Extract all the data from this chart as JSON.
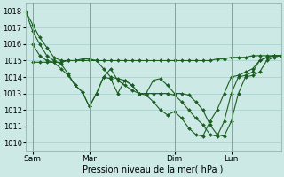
{
  "xlabel": "Pression niveau de la mer( hPa )",
  "ylim": [
    1009.5,
    1018.5
  ],
  "yticks": [
    1010,
    1011,
    1012,
    1013,
    1014,
    1015,
    1016,
    1017,
    1018
  ],
  "bg_color": "#cce9e5",
  "grid_color": "#aad4cf",
  "line_color": "#1a5e20",
  "marker_color": "#1a5e20",
  "x_tick_labels": [
    "Sam",
    "Mar",
    "Dim",
    "Lun"
  ],
  "x_tick_positions": [
    0.5,
    4.5,
    10.5,
    14.5
  ],
  "vline_positions": [
    0.5,
    4.5,
    10.5,
    14.5
  ],
  "series": [
    {
      "x": [
        0,
        0.5,
        1,
        1.5,
        2,
        2.5,
        3,
        3.5,
        4,
        4.5,
        5,
        5.5,
        6,
        6.5,
        7,
        7.5,
        8,
        8.5,
        9,
        9.5,
        10,
        10.5,
        11,
        11.5,
        12,
        12.5,
        13,
        13.5,
        14,
        14.5,
        15,
        15.5,
        16,
        16.5,
        17,
        17.5,
        18
      ],
      "y": [
        1018.0,
        1017.2,
        1016.4,
        1015.8,
        1015.2,
        1015.0,
        1015.0,
        1015.0,
        1015.0,
        1015.0,
        1015.0,
        1015.0,
        1015.0,
        1015.0,
        1015.0,
        1015.0,
        1015.0,
        1015.0,
        1015.0,
        1015.0,
        1015.0,
        1015.0,
        1015.0,
        1015.0,
        1015.0,
        1015.0,
        1015.0,
        1015.1,
        1015.1,
        1015.2,
        1015.2,
        1015.2,
        1015.3,
        1015.3,
        1015.3,
        1015.3,
        1015.3
      ]
    },
    {
      "x": [
        0,
        0.5,
        1,
        1.5,
        2,
        2.5,
        3,
        3.5,
        4,
        4.5,
        5,
        5.5,
        6,
        6.5,
        7,
        7.5,
        8,
        8.5,
        9,
        9.5,
        10,
        10.5,
        11,
        11.5,
        12,
        12.5,
        13,
        13.5,
        14,
        14.5,
        15,
        15.5,
        16,
        16.5,
        17,
        17.5,
        18
      ],
      "y": [
        1018.0,
        1016.8,
        1016.0,
        1015.3,
        1015.0,
        1014.8,
        1014.2,
        1013.5,
        1013.1,
        1012.2,
        1013.0,
        1014.0,
        1014.5,
        1013.8,
        1013.5,
        1013.2,
        1013.0,
        1013.0,
        1013.8,
        1013.9,
        1013.5,
        1013.0,
        1013.0,
        1012.9,
        1012.5,
        1012.0,
        1011.1,
        1010.5,
        1010.4,
        1011.3,
        1013.0,
        1014.0,
        1014.1,
        1014.3,
        1015.0,
        1015.2,
        1015.3
      ]
    },
    {
      "x": [
        0.5,
        1,
        1.5,
        2,
        2.5,
        3,
        3.5,
        4,
        4.5,
        5,
        5.5,
        6,
        6.5,
        7,
        7.5,
        8,
        8.5,
        9,
        9.5,
        10,
        10.5,
        11,
        11.5,
        12,
        12.5,
        13,
        13.5,
        14,
        14.5,
        15,
        15.5,
        16,
        16.5,
        17,
        17.5,
        18
      ],
      "y": [
        1016.0,
        1015.3,
        1015.0,
        1014.9,
        1014.5,
        1014.1,
        1013.5,
        1013.1,
        1012.2,
        1013.0,
        1014.0,
        1013.9,
        1013.0,
        1013.8,
        1013.5,
        1013.0,
        1013.0,
        1013.0,
        1013.0,
        1013.0,
        1012.9,
        1012.5,
        1012.0,
        1011.5,
        1011.1,
        1010.5,
        1010.4,
        1011.3,
        1013.0,
        1014.0,
        1014.1,
        1014.3,
        1015.0,
        1015.2,
        1015.3,
        1015.3
      ]
    },
    {
      "x": [
        0.5,
        1,
        1.5,
        2,
        2.5,
        3,
        3.5,
        4,
        4.5,
        5,
        5.5,
        6,
        6.5,
        7,
        7.5,
        8,
        8.5,
        9,
        9.5,
        10,
        10.5,
        11,
        11.5,
        12,
        12.5,
        13,
        13.5,
        14,
        14.5,
        15,
        15.5,
        16,
        16.5,
        17,
        17.5,
        18
      ],
      "y": [
        1014.9,
        1014.9,
        1014.9,
        1014.9,
        1014.9,
        1015.0,
        1015.0,
        1015.1,
        1015.1,
        1015.0,
        1014.5,
        1014.0,
        1013.9,
        1013.8,
        1013.5,
        1013.0,
        1012.9,
        1012.5,
        1012.0,
        1011.7,
        1011.9,
        1011.5,
        1010.9,
        1010.5,
        1010.4,
        1011.3,
        1012.0,
        1013.0,
        1014.0,
        1014.1,
        1014.3,
        1014.5,
        1015.0,
        1015.2,
        1015.3,
        1015.3
      ]
    }
  ],
  "xlim": [
    0,
    18
  ]
}
